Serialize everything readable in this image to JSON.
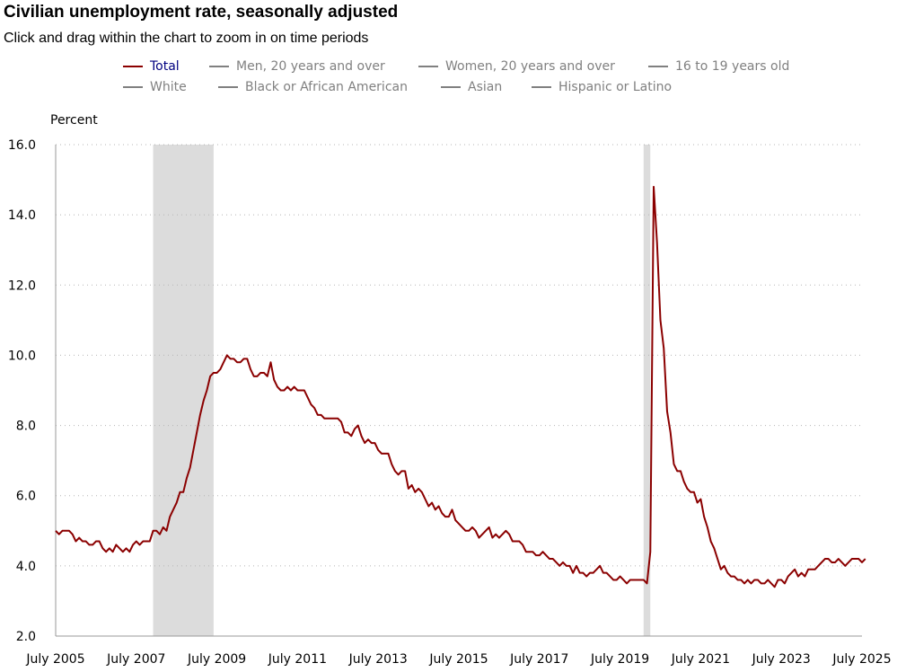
{
  "header": {
    "title": "Civilian unemployment rate, seasonally adjusted",
    "subtitle": "Click and drag within the chart to zoom in on time periods"
  },
  "legend": [
    {
      "label": "Total",
      "active": true,
      "color": "#8b0000",
      "text_color": "#000080"
    },
    {
      "label": "Men, 20 years and over",
      "active": false,
      "color": "#808080",
      "text_color": "#808080"
    },
    {
      "label": "Women, 20 years and over",
      "active": false,
      "color": "#808080",
      "text_color": "#808080"
    },
    {
      "label": "16 to 19 years old",
      "active": false,
      "color": "#808080",
      "text_color": "#808080"
    },
    {
      "label": "White",
      "active": false,
      "color": "#808080",
      "text_color": "#808080"
    },
    {
      "label": "Black or African American",
      "active": false,
      "color": "#808080",
      "text_color": "#808080"
    },
    {
      "label": "Asian",
      "active": false,
      "color": "#808080",
      "text_color": "#808080"
    },
    {
      "label": "Hispanic or Latino",
      "active": false,
      "color": "#808080",
      "text_color": "#808080"
    }
  ],
  "chart_data": {
    "type": "line",
    "title": "Civilian unemployment rate, seasonally adjusted",
    "ylabel": "Percent",
    "xlabel": "",
    "ylim": [
      2.0,
      16.0
    ],
    "yticks": [
      "2.0",
      "4.0",
      "6.0",
      "8.0",
      "10.0",
      "12.0",
      "14.0",
      "16.0"
    ],
    "xticks": [
      {
        "label": "July 2005",
        "t": 2005.5
      },
      {
        "label": "July 2007",
        "t": 2007.5
      },
      {
        "label": "July 2009",
        "t": 2009.5
      },
      {
        "label": "July 2011",
        "t": 2011.5
      },
      {
        "label": "July 2013",
        "t": 2013.5
      },
      {
        "label": "July 2015",
        "t": 2015.5
      },
      {
        "label": "July 2017",
        "t": 2017.5
      },
      {
        "label": "July 2019",
        "t": 2019.5
      },
      {
        "label": "July 2021",
        "t": 2021.5
      },
      {
        "label": "July 2023",
        "t": 2023.5
      },
      {
        "label": "July 2025",
        "t": 2025.5
      }
    ],
    "xlim": [
      2005.5,
      2025.5
    ],
    "recessions": [
      {
        "start": 2007.917,
        "end": 2009.417
      },
      {
        "start": 2020.083,
        "end": 2020.25
      }
    ],
    "grid": "horizontal dotted",
    "series": [
      {
        "name": "Total",
        "color": "#8b0000",
        "start": "July 2005",
        "step": "monthly",
        "values": [
          5.0,
          4.9,
          5.0,
          5.0,
          5.0,
          4.9,
          4.7,
          4.8,
          4.7,
          4.7,
          4.6,
          4.6,
          4.7,
          4.7,
          4.5,
          4.4,
          4.5,
          4.4,
          4.6,
          4.5,
          4.4,
          4.5,
          4.4,
          4.6,
          4.7,
          4.6,
          4.7,
          4.7,
          4.7,
          5.0,
          5.0,
          4.9,
          5.1,
          5.0,
          5.4,
          5.6,
          5.8,
          6.1,
          6.1,
          6.5,
          6.8,
          7.3,
          7.8,
          8.3,
          8.7,
          9.0,
          9.4,
          9.5,
          9.5,
          9.6,
          9.8,
          10.0,
          9.9,
          9.9,
          9.8,
          9.8,
          9.9,
          9.9,
          9.6,
          9.4,
          9.4,
          9.5,
          9.5,
          9.4,
          9.8,
          9.3,
          9.1,
          9.0,
          9.0,
          9.1,
          9.0,
          9.1,
          9.0,
          9.0,
          9.0,
          8.8,
          8.6,
          8.5,
          8.3,
          8.3,
          8.2,
          8.2,
          8.2,
          8.2,
          8.2,
          8.1,
          7.8,
          7.8,
          7.7,
          7.9,
          8.0,
          7.7,
          7.5,
          7.6,
          7.5,
          7.5,
          7.3,
          7.2,
          7.2,
          7.2,
          6.9,
          6.7,
          6.6,
          6.7,
          6.7,
          6.2,
          6.3,
          6.1,
          6.2,
          6.1,
          5.9,
          5.7,
          5.8,
          5.6,
          5.7,
          5.5,
          5.4,
          5.4,
          5.6,
          5.3,
          5.2,
          5.1,
          5.0,
          5.0,
          5.1,
          5.0,
          4.8,
          4.9,
          5.0,
          5.1,
          4.8,
          4.9,
          4.8,
          4.9,
          5.0,
          4.9,
          4.7,
          4.7,
          4.7,
          4.6,
          4.4,
          4.4,
          4.4,
          4.3,
          4.3,
          4.4,
          4.3,
          4.2,
          4.2,
          4.1,
          4.0,
          4.1,
          4.0,
          4.0,
          3.8,
          4.0,
          3.8,
          3.8,
          3.7,
          3.8,
          3.8,
          3.9,
          4.0,
          3.8,
          3.8,
          3.7,
          3.6,
          3.6,
          3.7,
          3.6,
          3.5,
          3.6,
          3.6,
          3.6,
          3.6,
          3.6,
          3.5,
          4.4,
          14.8,
          13.2,
          11.0,
          10.2,
          8.4,
          7.8,
          6.9,
          6.7,
          6.7,
          6.4,
          6.2,
          6.1,
          6.1,
          5.8,
          5.9,
          5.4,
          5.1,
          4.7,
          4.5,
          4.2,
          3.9,
          4.0,
          3.8,
          3.7,
          3.7,
          3.6,
          3.6,
          3.5,
          3.6,
          3.5,
          3.6,
          3.6,
          3.5,
          3.5,
          3.6,
          3.5,
          3.4,
          3.6,
          3.6,
          3.5,
          3.7,
          3.8,
          3.9,
          3.7,
          3.8,
          3.7,
          3.9,
          3.9,
          3.9,
          4.0,
          4.1,
          4.2,
          4.2,
          4.1,
          4.1,
          4.2,
          4.1,
          4.0,
          4.1,
          4.2,
          4.2,
          4.2,
          4.1,
          4.2
        ]
      }
    ]
  }
}
